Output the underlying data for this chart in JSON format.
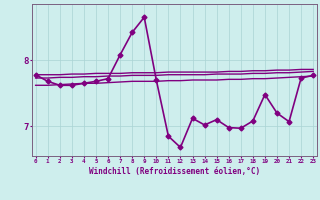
{
  "title": "",
  "xlabel": "Windchill (Refroidissement éolien,°C)",
  "ylabel": "",
  "background_color": "#ceeeed",
  "line_color": "#800080",
  "grid_color": "#aad4d4",
  "x_ticks": [
    0,
    1,
    2,
    3,
    4,
    5,
    6,
    7,
    8,
    9,
    10,
    11,
    12,
    13,
    14,
    15,
    16,
    17,
    18,
    19,
    20,
    21,
    22,
    23
  ],
  "y_ticks": [
    7,
    8
  ],
  "ylim": [
    6.55,
    8.85
  ],
  "xlim": [
    -0.3,
    23.3
  ],
  "series": [
    {
      "x": [
        0,
        1,
        2,
        3,
        4,
        5,
        6,
        7,
        8,
        9,
        10,
        11,
        12,
        13,
        14,
        15,
        16,
        17,
        18,
        19,
        20,
        21,
        22,
        23
      ],
      "y": [
        7.78,
        7.78,
        7.78,
        7.79,
        7.79,
        7.8,
        7.8,
        7.8,
        7.81,
        7.81,
        7.81,
        7.82,
        7.82,
        7.82,
        7.82,
        7.82,
        7.83,
        7.83,
        7.84,
        7.84,
        7.85,
        7.85,
        7.86,
        7.86
      ],
      "marker": null,
      "lw": 1.0
    },
    {
      "x": [
        0,
        1,
        2,
        3,
        4,
        5,
        6,
        7,
        8,
        9,
        10,
        11,
        12,
        13,
        14,
        15,
        16,
        17,
        18,
        19,
        20,
        21,
        22,
        23
      ],
      "y": [
        7.73,
        7.73,
        7.74,
        7.74,
        7.75,
        7.75,
        7.76,
        7.76,
        7.77,
        7.77,
        7.77,
        7.78,
        7.78,
        7.78,
        7.78,
        7.79,
        7.79,
        7.79,
        7.8,
        7.8,
        7.81,
        7.81,
        7.82,
        7.83
      ],
      "marker": null,
      "lw": 1.0
    },
    {
      "x": [
        0,
        1,
        2,
        3,
        4,
        5,
        6,
        7,
        8,
        9,
        10,
        11,
        12,
        13,
        14,
        15,
        16,
        17,
        18,
        19,
        20,
        21,
        22,
        23
      ],
      "y": [
        7.62,
        7.62,
        7.63,
        7.64,
        7.65,
        7.65,
        7.66,
        7.67,
        7.68,
        7.68,
        7.68,
        7.69,
        7.69,
        7.7,
        7.7,
        7.7,
        7.71,
        7.71,
        7.72,
        7.72,
        7.73,
        7.74,
        7.75,
        7.76
      ],
      "marker": null,
      "lw": 1.0
    },
    {
      "x": [
        0,
        1,
        2,
        3,
        4,
        5,
        6,
        7,
        8,
        9,
        10,
        11,
        12,
        13,
        14,
        15,
        16,
        17,
        18,
        19,
        20,
        21,
        22,
        23
      ],
      "y": [
        7.78,
        7.68,
        7.62,
        7.62,
        7.65,
        7.68,
        7.72,
        8.08,
        8.42,
        8.65,
        7.7,
        6.85,
        6.68,
        7.12,
        7.02,
        7.1,
        6.98,
        6.97,
        7.08,
        7.48,
        7.2,
        7.07,
        7.73,
        7.77
      ],
      "marker": "D",
      "lw": 1.2
    }
  ]
}
